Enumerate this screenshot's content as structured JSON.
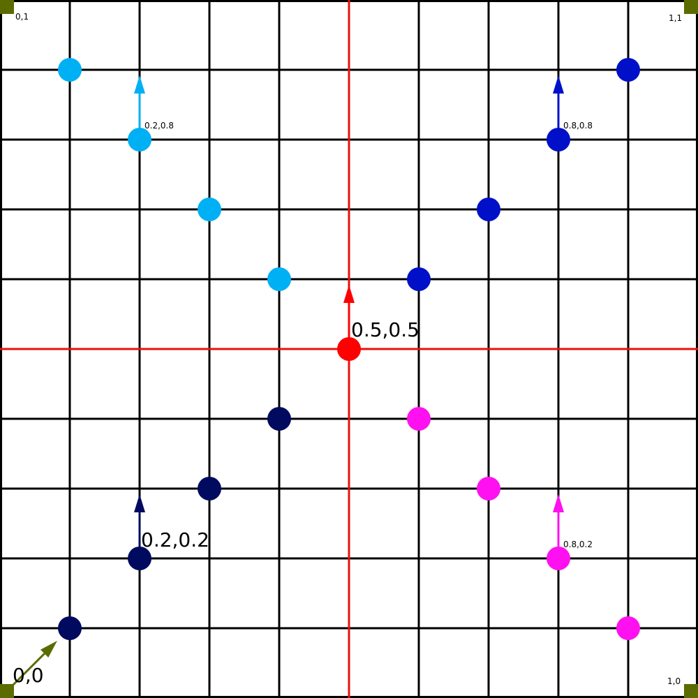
{
  "colors": {
    "grid": "#000000",
    "center_line": "#e81010",
    "corner_square": "#5c6b00",
    "origin_arrow": "#5c6b00"
  },
  "corners": {
    "top_left": "0,1",
    "top_right": "1,1",
    "bottom_left": "0,0",
    "bottom_right": "1,0"
  },
  "grid": {
    "divisions": 10,
    "center_lines": [
      0.5
    ]
  },
  "quadrants": [
    {
      "id": "bottom-left",
      "color": "#000a5e",
      "points": [
        [
          0.1,
          0.1
        ],
        [
          0.2,
          0.2
        ],
        [
          0.3,
          0.3
        ],
        [
          0.4,
          0.4
        ]
      ],
      "label": "0.2,0.2",
      "label_size": "large",
      "arrow_from": [
        0.2,
        0.2
      ]
    },
    {
      "id": "top-left",
      "color": "#00b0f5",
      "points": [
        [
          0.1,
          0.9
        ],
        [
          0.2,
          0.8
        ],
        [
          0.3,
          0.7
        ],
        [
          0.4,
          0.6
        ]
      ],
      "label": "0.2,0.8",
      "label_size": "small",
      "arrow_from": [
        0.2,
        0.8
      ]
    },
    {
      "id": "top-right",
      "color": "#0010c8",
      "points": [
        [
          0.9,
          0.9
        ],
        [
          0.8,
          0.8
        ],
        [
          0.7,
          0.7
        ],
        [
          0.6,
          0.6
        ]
      ],
      "label": "0.8,0.8",
      "label_size": "small",
      "arrow_from": [
        0.8,
        0.8
      ]
    },
    {
      "id": "bottom-right",
      "color": "#ff10f0",
      "points": [
        [
          0.9,
          0.1
        ],
        [
          0.8,
          0.2
        ],
        [
          0.7,
          0.3
        ],
        [
          0.6,
          0.4
        ]
      ],
      "label": "0.8,0.2",
      "label_size": "small",
      "arrow_from": [
        0.8,
        0.2
      ]
    },
    {
      "id": "center",
      "color": "#ff0000",
      "points": [
        [
          0.5,
          0.5
        ]
      ],
      "label": "0.5,0.5",
      "label_size": "large",
      "arrow_from": [
        0.5,
        0.5
      ]
    }
  ]
}
